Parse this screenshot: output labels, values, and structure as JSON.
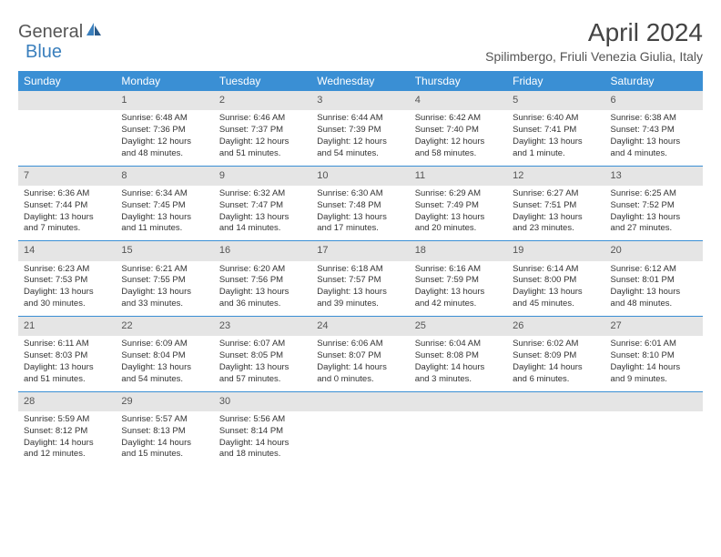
{
  "logo": {
    "text1": "General",
    "text2": "Blue"
  },
  "title": "April 2024",
  "location": "Spilimbergo, Friuli Venezia Giulia, Italy",
  "colors": {
    "header_blue": "#3a8fd4",
    "logo_blue": "#3a7fbd",
    "day_bar": "#e5e5e5",
    "text": "#333333"
  },
  "weekdays": [
    "Sunday",
    "Monday",
    "Tuesday",
    "Wednesday",
    "Thursday",
    "Friday",
    "Saturday"
  ],
  "weeks": [
    [
      {
        "num": "",
        "sunrise": "",
        "sunset": "",
        "daylight1": "",
        "daylight2": ""
      },
      {
        "num": "1",
        "sunrise": "Sunrise: 6:48 AM",
        "sunset": "Sunset: 7:36 PM",
        "daylight1": "Daylight: 12 hours",
        "daylight2": "and 48 minutes."
      },
      {
        "num": "2",
        "sunrise": "Sunrise: 6:46 AM",
        "sunset": "Sunset: 7:37 PM",
        "daylight1": "Daylight: 12 hours",
        "daylight2": "and 51 minutes."
      },
      {
        "num": "3",
        "sunrise": "Sunrise: 6:44 AM",
        "sunset": "Sunset: 7:39 PM",
        "daylight1": "Daylight: 12 hours",
        "daylight2": "and 54 minutes."
      },
      {
        "num": "4",
        "sunrise": "Sunrise: 6:42 AM",
        "sunset": "Sunset: 7:40 PM",
        "daylight1": "Daylight: 12 hours",
        "daylight2": "and 58 minutes."
      },
      {
        "num": "5",
        "sunrise": "Sunrise: 6:40 AM",
        "sunset": "Sunset: 7:41 PM",
        "daylight1": "Daylight: 13 hours",
        "daylight2": "and 1 minute."
      },
      {
        "num": "6",
        "sunrise": "Sunrise: 6:38 AM",
        "sunset": "Sunset: 7:43 PM",
        "daylight1": "Daylight: 13 hours",
        "daylight2": "and 4 minutes."
      }
    ],
    [
      {
        "num": "7",
        "sunrise": "Sunrise: 6:36 AM",
        "sunset": "Sunset: 7:44 PM",
        "daylight1": "Daylight: 13 hours",
        "daylight2": "and 7 minutes."
      },
      {
        "num": "8",
        "sunrise": "Sunrise: 6:34 AM",
        "sunset": "Sunset: 7:45 PM",
        "daylight1": "Daylight: 13 hours",
        "daylight2": "and 11 minutes."
      },
      {
        "num": "9",
        "sunrise": "Sunrise: 6:32 AM",
        "sunset": "Sunset: 7:47 PM",
        "daylight1": "Daylight: 13 hours",
        "daylight2": "and 14 minutes."
      },
      {
        "num": "10",
        "sunrise": "Sunrise: 6:30 AM",
        "sunset": "Sunset: 7:48 PM",
        "daylight1": "Daylight: 13 hours",
        "daylight2": "and 17 minutes."
      },
      {
        "num": "11",
        "sunrise": "Sunrise: 6:29 AM",
        "sunset": "Sunset: 7:49 PM",
        "daylight1": "Daylight: 13 hours",
        "daylight2": "and 20 minutes."
      },
      {
        "num": "12",
        "sunrise": "Sunrise: 6:27 AM",
        "sunset": "Sunset: 7:51 PM",
        "daylight1": "Daylight: 13 hours",
        "daylight2": "and 23 minutes."
      },
      {
        "num": "13",
        "sunrise": "Sunrise: 6:25 AM",
        "sunset": "Sunset: 7:52 PM",
        "daylight1": "Daylight: 13 hours",
        "daylight2": "and 27 minutes."
      }
    ],
    [
      {
        "num": "14",
        "sunrise": "Sunrise: 6:23 AM",
        "sunset": "Sunset: 7:53 PM",
        "daylight1": "Daylight: 13 hours",
        "daylight2": "and 30 minutes."
      },
      {
        "num": "15",
        "sunrise": "Sunrise: 6:21 AM",
        "sunset": "Sunset: 7:55 PM",
        "daylight1": "Daylight: 13 hours",
        "daylight2": "and 33 minutes."
      },
      {
        "num": "16",
        "sunrise": "Sunrise: 6:20 AM",
        "sunset": "Sunset: 7:56 PM",
        "daylight1": "Daylight: 13 hours",
        "daylight2": "and 36 minutes."
      },
      {
        "num": "17",
        "sunrise": "Sunrise: 6:18 AM",
        "sunset": "Sunset: 7:57 PM",
        "daylight1": "Daylight: 13 hours",
        "daylight2": "and 39 minutes."
      },
      {
        "num": "18",
        "sunrise": "Sunrise: 6:16 AM",
        "sunset": "Sunset: 7:59 PM",
        "daylight1": "Daylight: 13 hours",
        "daylight2": "and 42 minutes."
      },
      {
        "num": "19",
        "sunrise": "Sunrise: 6:14 AM",
        "sunset": "Sunset: 8:00 PM",
        "daylight1": "Daylight: 13 hours",
        "daylight2": "and 45 minutes."
      },
      {
        "num": "20",
        "sunrise": "Sunrise: 6:12 AM",
        "sunset": "Sunset: 8:01 PM",
        "daylight1": "Daylight: 13 hours",
        "daylight2": "and 48 minutes."
      }
    ],
    [
      {
        "num": "21",
        "sunrise": "Sunrise: 6:11 AM",
        "sunset": "Sunset: 8:03 PM",
        "daylight1": "Daylight: 13 hours",
        "daylight2": "and 51 minutes."
      },
      {
        "num": "22",
        "sunrise": "Sunrise: 6:09 AM",
        "sunset": "Sunset: 8:04 PM",
        "daylight1": "Daylight: 13 hours",
        "daylight2": "and 54 minutes."
      },
      {
        "num": "23",
        "sunrise": "Sunrise: 6:07 AM",
        "sunset": "Sunset: 8:05 PM",
        "daylight1": "Daylight: 13 hours",
        "daylight2": "and 57 minutes."
      },
      {
        "num": "24",
        "sunrise": "Sunrise: 6:06 AM",
        "sunset": "Sunset: 8:07 PM",
        "daylight1": "Daylight: 14 hours",
        "daylight2": "and 0 minutes."
      },
      {
        "num": "25",
        "sunrise": "Sunrise: 6:04 AM",
        "sunset": "Sunset: 8:08 PM",
        "daylight1": "Daylight: 14 hours",
        "daylight2": "and 3 minutes."
      },
      {
        "num": "26",
        "sunrise": "Sunrise: 6:02 AM",
        "sunset": "Sunset: 8:09 PM",
        "daylight1": "Daylight: 14 hours",
        "daylight2": "and 6 minutes."
      },
      {
        "num": "27",
        "sunrise": "Sunrise: 6:01 AM",
        "sunset": "Sunset: 8:10 PM",
        "daylight1": "Daylight: 14 hours",
        "daylight2": "and 9 minutes."
      }
    ],
    [
      {
        "num": "28",
        "sunrise": "Sunrise: 5:59 AM",
        "sunset": "Sunset: 8:12 PM",
        "daylight1": "Daylight: 14 hours",
        "daylight2": "and 12 minutes."
      },
      {
        "num": "29",
        "sunrise": "Sunrise: 5:57 AM",
        "sunset": "Sunset: 8:13 PM",
        "daylight1": "Daylight: 14 hours",
        "daylight2": "and 15 minutes."
      },
      {
        "num": "30",
        "sunrise": "Sunrise: 5:56 AM",
        "sunset": "Sunset: 8:14 PM",
        "daylight1": "Daylight: 14 hours",
        "daylight2": "and 18 minutes."
      },
      {
        "num": "",
        "sunrise": "",
        "sunset": "",
        "daylight1": "",
        "daylight2": ""
      },
      {
        "num": "",
        "sunrise": "",
        "sunset": "",
        "daylight1": "",
        "daylight2": ""
      },
      {
        "num": "",
        "sunrise": "",
        "sunset": "",
        "daylight1": "",
        "daylight2": ""
      },
      {
        "num": "",
        "sunrise": "",
        "sunset": "",
        "daylight1": "",
        "daylight2": ""
      }
    ]
  ]
}
